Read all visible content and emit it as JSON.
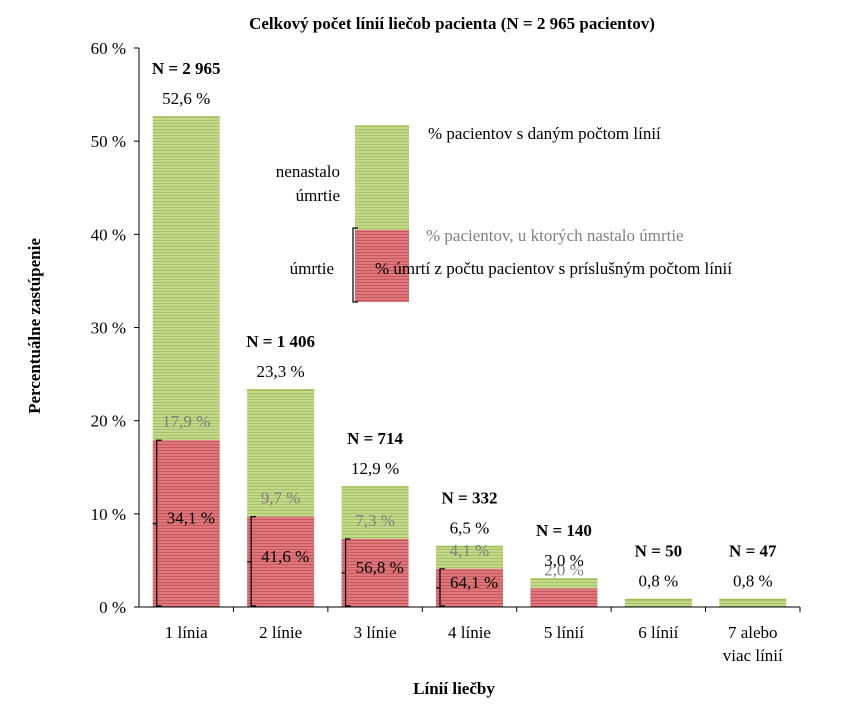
{
  "chart_data": {
    "type": "bar",
    "title": "Celkový počet línií liečob pacienta (N = 2 965 pacientov)",
    "xlabel": "Línií liečby",
    "ylabel": "Percentuálne zastúpenie",
    "ylim": [
      0,
      60
    ],
    "yticks": [
      "0 %",
      "10 %",
      "20 %",
      "30 %",
      "40 %",
      "50 %",
      "60 %"
    ],
    "categories": [
      [
        "1 línia"
      ],
      [
        "2 línie"
      ],
      [
        "3 línie"
      ],
      [
        "4 línie"
      ],
      [
        "5 línií"
      ],
      [
        "6 línií"
      ],
      [
        "7 alebo",
        "viac línií"
      ]
    ],
    "series": [
      {
        "name": "% pacientov s daným počtom línií",
        "values": [
          52.6,
          23.3,
          12.9,
          6.5,
          3.0,
          0.8,
          0.8
        ],
        "labels": [
          "52,6 %",
          "23,3 %",
          "12,9 %",
          "6,5 %",
          "3,0 %",
          "0,8 %",
          "0,8 %"
        ]
      },
      {
        "name": "% pacientov, u ktorých nastalo úmrtie",
        "values": [
          17.9,
          9.7,
          7.3,
          4.1,
          2.0,
          null,
          null
        ],
        "labels": [
          "17,9 %",
          "9,7 %",
          "7,3 %",
          "4,1 %",
          "2,0 %",
          "",
          ""
        ]
      },
      {
        "name": "% úmrtí z počtu pacientov s príslušným počtom línií",
        "values": [
          34.1,
          41.6,
          56.8,
          64.1,
          null,
          null,
          null
        ],
        "labels": [
          "34,1 %",
          "41,6 %",
          "56,8 %",
          "64,1 %",
          "",
          "",
          ""
        ]
      }
    ],
    "n_labels": [
      "N = 2 965",
      "N = 1 406",
      "N = 714",
      "N = 332",
      "N = 140",
      "N = 50",
      "N = 47"
    ],
    "legend": {
      "placement": "top-right",
      "upper_segment": [
        "nenastalo",
        "úmrtie"
      ],
      "lower_segment": "úmrtie"
    },
    "colors": {
      "alive": "#c3d98a",
      "alive_stripe": "#a9c268",
      "death": "#e0757a",
      "death_stripe": "#c25a60",
      "bar_top": "#9fbf55",
      "grey_text": "#7f7f7f",
      "axis": "#000000"
    },
    "grid": false
  }
}
